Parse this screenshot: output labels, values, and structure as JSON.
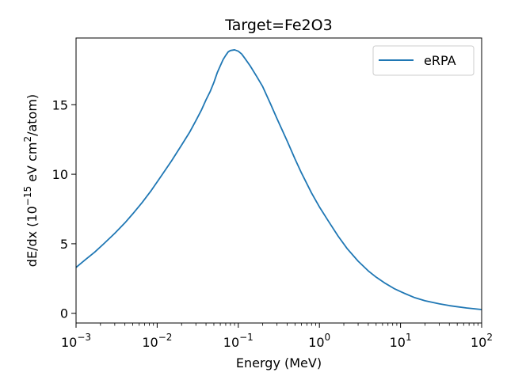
{
  "chart_data": {
    "type": "line",
    "title": "Target=Fe2O3",
    "xlabel": "Energy (MeV)",
    "ylabel": "dE/dx (10^-15 eV cm^2/atom)",
    "xscale": "log",
    "xlim": [
      0.001,
      100
    ],
    "ylim": [
      -0.7,
      19.8
    ],
    "x_ticks": [
      {
        "value": 0.001,
        "base": "10",
        "exp": "−3"
      },
      {
        "value": 0.01,
        "base": "10",
        "exp": "−2"
      },
      {
        "value": 0.1,
        "base": "10",
        "exp": "−1"
      },
      {
        "value": 1,
        "base": "10",
        "exp": "0"
      },
      {
        "value": 10,
        "base": "10",
        "exp": "1"
      },
      {
        "value": 100,
        "base": "10",
        "exp": "2"
      }
    ],
    "y_ticks": [
      0,
      5,
      10,
      15
    ],
    "grid": false,
    "legend_position": "top-right",
    "series": [
      {
        "name": "eRPA",
        "color": "#1f77b4",
        "x": [
          0.001,
          0.0013,
          0.0017,
          0.0022,
          0.003,
          0.004,
          0.005,
          0.0065,
          0.0085,
          0.011,
          0.015,
          0.02,
          0.025,
          0.03,
          0.035,
          0.04,
          0.045,
          0.05,
          0.055,
          0.06,
          0.065,
          0.07,
          0.075,
          0.08,
          0.09,
          0.1,
          0.11,
          0.12,
          0.14,
          0.17,
          0.2,
          0.25,
          0.3,
          0.4,
          0.5,
          0.6,
          0.8,
          1.0,
          1.3,
          1.7,
          2.2,
          3.0,
          4.0,
          5.0,
          6.5,
          8.5,
          11,
          15,
          20,
          30,
          40,
          50,
          65,
          85,
          100
        ],
        "y": [
          3.3,
          3.85,
          4.4,
          5.0,
          5.75,
          6.5,
          7.15,
          7.95,
          8.85,
          9.8,
          10.95,
          12.1,
          13.0,
          13.85,
          14.6,
          15.35,
          15.95,
          16.6,
          17.3,
          17.8,
          18.25,
          18.55,
          18.8,
          18.9,
          18.95,
          18.85,
          18.65,
          18.35,
          17.8,
          17.0,
          16.3,
          15.05,
          14.0,
          12.4,
          11.1,
          10.1,
          8.65,
          7.65,
          6.6,
          5.55,
          4.65,
          3.75,
          3.05,
          2.6,
          2.15,
          1.75,
          1.45,
          1.12,
          0.9,
          0.68,
          0.55,
          0.47,
          0.38,
          0.31,
          0.27
        ]
      }
    ]
  }
}
